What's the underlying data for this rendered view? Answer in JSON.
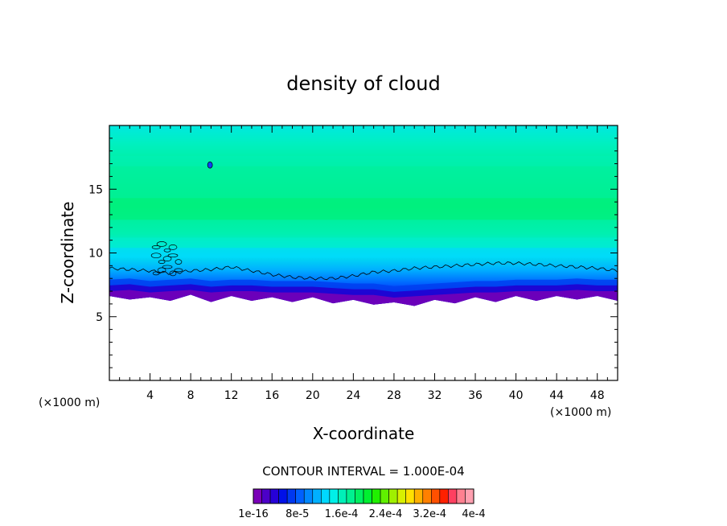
{
  "chart_data": {
    "type": "heatmap",
    "title": "density of cloud",
    "xlabel": "X-coordinate",
    "ylabel": "Z-coordinate",
    "x_unit": "(×1000 m)",
    "z_unit": "(×1000 m)",
    "xlim": [
      0,
      50
    ],
    "ylim": [
      0,
      20
    ],
    "x_ticks": [
      4,
      8,
      12,
      16,
      20,
      24,
      28,
      32,
      36,
      40,
      44,
      48
    ],
    "y_ticks": [
      5,
      10,
      15
    ],
    "contour_interval_text": "CONTOUR INTERVAL = 1.000E-04",
    "colorbar_labels": [
      "1e-16",
      "8e-5",
      "1.6e-4",
      "2.4e-4",
      "3.2e-4",
      "4e-4"
    ],
    "colorbar_colors": [
      "#7a00b8",
      "#4c00c8",
      "#2600d8",
      "#0010e8",
      "#0038f0",
      "#0060ff",
      "#0088ff",
      "#00b0ff",
      "#00d8ff",
      "#00f0e8",
      "#00f0b8",
      "#00f090",
      "#00f060",
      "#00f030",
      "#20f000",
      "#60f000",
      "#a0f000",
      "#d8f000",
      "#ffe000",
      "#ffb000",
      "#ff8000",
      "#ff5000",
      "#ff2000",
      "#ff4060",
      "#ff8090",
      "#ffa0b0"
    ],
    "grid": false,
    "legend": "colorbar-bottom",
    "cloud_base_profile": {
      "x": [
        0,
        2,
        4,
        6,
        8,
        10,
        12,
        14,
        16,
        18,
        20,
        22,
        24,
        26,
        28,
        30,
        32,
        34,
        36,
        38,
        40,
        42,
        44,
        46,
        48,
        50
      ],
      "z": [
        6.5,
        6.6,
        6.4,
        6.5,
        6.6,
        6.4,
        6.5,
        6.5,
        6.4,
        6.4,
        6.4,
        6.3,
        6.2,
        6.2,
        6.0,
        6.1,
        6.2,
        6.3,
        6.4,
        6.4,
        6.5,
        6.5,
        6.5,
        6.6,
        6.5,
        6.5
      ]
    },
    "contour_line_profile": {
      "x": [
        0,
        2,
        4,
        6,
        8,
        10,
        12,
        14,
        16,
        18,
        20,
        22,
        24,
        26,
        28,
        30,
        32,
        34,
        36,
        38,
        40,
        42,
        44,
        46,
        48,
        50
      ],
      "z": [
        8.8,
        8.7,
        8.6,
        8.4,
        8.6,
        8.7,
        8.9,
        8.6,
        8.3,
        8.1,
        8.0,
        8.0,
        8.2,
        8.5,
        8.6,
        8.8,
        8.9,
        9.0,
        9.1,
        9.2,
        9.2,
        9.1,
        9.0,
        8.9,
        8.8,
        8.6
      ]
    }
  }
}
